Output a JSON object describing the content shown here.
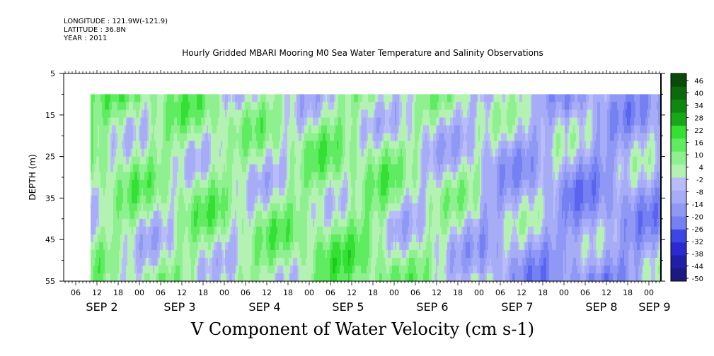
{
  "header": {
    "longitude": "LONGITUDE : 121.9W(-121.9)",
    "latitude": "LATITUDE : 36.8N",
    "year": "YEAR : 2011"
  },
  "chart_data": {
    "type": "heatmap",
    "title": "Hourly Gridded MBARI Mooring M0 Sea Water Temperature and Salinity Observations",
    "xlabel": "V Component of Water Velocity (cm s-1)",
    "ylabel": "DEPTH (m)",
    "ylim": [
      55,
      5
    ],
    "yticks": [
      5,
      15,
      25,
      35,
      45,
      55
    ],
    "data_depth_range": [
      10,
      55
    ],
    "x_hour_ticks": [
      "06",
      "12",
      "18",
      "00",
      "06",
      "12",
      "18",
      "00",
      "06",
      "12",
      "18",
      "00",
      "06",
      "12",
      "18",
      "00",
      "06",
      "12",
      "18",
      "00",
      "06",
      "12",
      "18",
      "00",
      "06",
      "12",
      "18",
      "00"
    ],
    "x_date_labels": [
      "SEP 2",
      "SEP 3",
      "SEP 4",
      "SEP 5",
      "SEP 6",
      "SEP 7",
      "SEP 8",
      "SEP 9"
    ],
    "colorbar": {
      "levels": [
        -50,
        -44,
        -38,
        -32,
        -26,
        -20,
        -14,
        -8,
        -2,
        4,
        10,
        16,
        22,
        28,
        34,
        40,
        46
      ],
      "tick_labels": [
        "46",
        "40",
        "34",
        "28",
        "22",
        "16",
        "10",
        "4",
        "-2",
        "-8",
        "-14",
        "-20",
        "-26",
        "-32",
        "-38",
        "-44",
        "-50"
      ],
      "colors_low": [
        "#1a1a80",
        "#1f1fa8",
        "#2a2ad0",
        "#3c46e6",
        "#5a64f0",
        "#7580f2",
        "#8f98f4",
        "#a6acf6",
        "#b8bcf8"
      ],
      "colors_high": [
        "#b4f2b4",
        "#8ef08e",
        "#60ec60",
        "#34e034",
        "#1ec81e",
        "#16a816",
        "#108810",
        "#0c6a0c",
        "#084a08"
      ]
    },
    "field_by_day_column": [
      {
        "label": "SEP 2",
        "mean_v": 10
      },
      {
        "label": "SEP 3",
        "mean_v": 8
      },
      {
        "label": "SEP 4",
        "mean_v": 4
      },
      {
        "label": "SEP 5",
        "mean_v": 6
      },
      {
        "label": "SEP 6",
        "mean_v": 2
      },
      {
        "label": "SEP 7",
        "mean_v": -2
      },
      {
        "label": "SEP 8",
        "mean_v": -6
      }
    ]
  }
}
